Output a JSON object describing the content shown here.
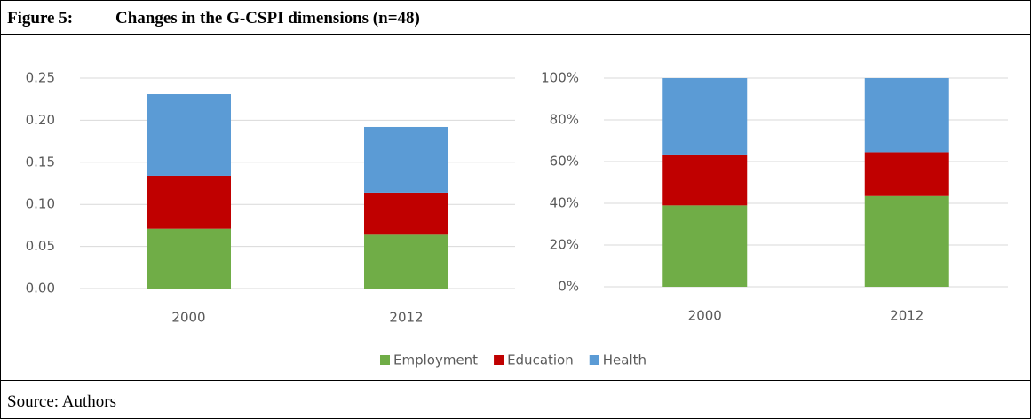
{
  "header": {
    "label": "Figure 5:",
    "title": "Changes in the G-CSPI dimensions (n=48)"
  },
  "chart_data": [
    {
      "type": "stacked-bar",
      "categories": [
        "2000",
        "2012"
      ],
      "series": [
        {
          "name": "Employment",
          "color": "#70ad47",
          "values": [
            0.071,
            0.064
          ]
        },
        {
          "name": "Education",
          "color": "#c00000",
          "values": [
            0.063,
            0.05
          ]
        },
        {
          "name": "Health",
          "color": "#5b9bd5",
          "values": [
            0.097,
            0.078
          ]
        }
      ],
      "ylim": [
        0,
        0.25
      ],
      "yticks": [
        {
          "value": 0,
          "label": "0.00"
        },
        {
          "value": 0.05,
          "label": "0.05"
        },
        {
          "value": 0.1,
          "label": "0.10"
        },
        {
          "value": 0.15,
          "label": "0.15"
        },
        {
          "value": 0.2,
          "label": "0.20"
        },
        0.25
      ],
      "grid": true
    },
    {
      "type": "stacked-bar",
      "categories": [
        "2000",
        "2012"
      ],
      "series": [
        {
          "color": "#70ad47",
          "values": [
            39,
            43.5
          ]
        },
        {
          "color": "#c00000",
          "values": [
            24,
            21
          ]
        },
        {
          "color": "#5b9bd5",
          "values": [
            37,
            35.5
          ]
        }
      ],
      "ylim": [
        0,
        100
      ],
      "yticks": [
        {
          "value": 0,
          "label": "0%"
        },
        {
          "value": 20,
          "label": "20%"
        },
        {
          "value": 40,
          "label": "40%"
        },
        {
          "value": 60,
          "label": "60%"
        },
        {
          "value": 80,
          "label": "80%"
        },
        {
          "value": 100,
          "label": "100%"
        }
      ],
      "grid": true
    }
  ],
  "source": "Source: Authors"
}
